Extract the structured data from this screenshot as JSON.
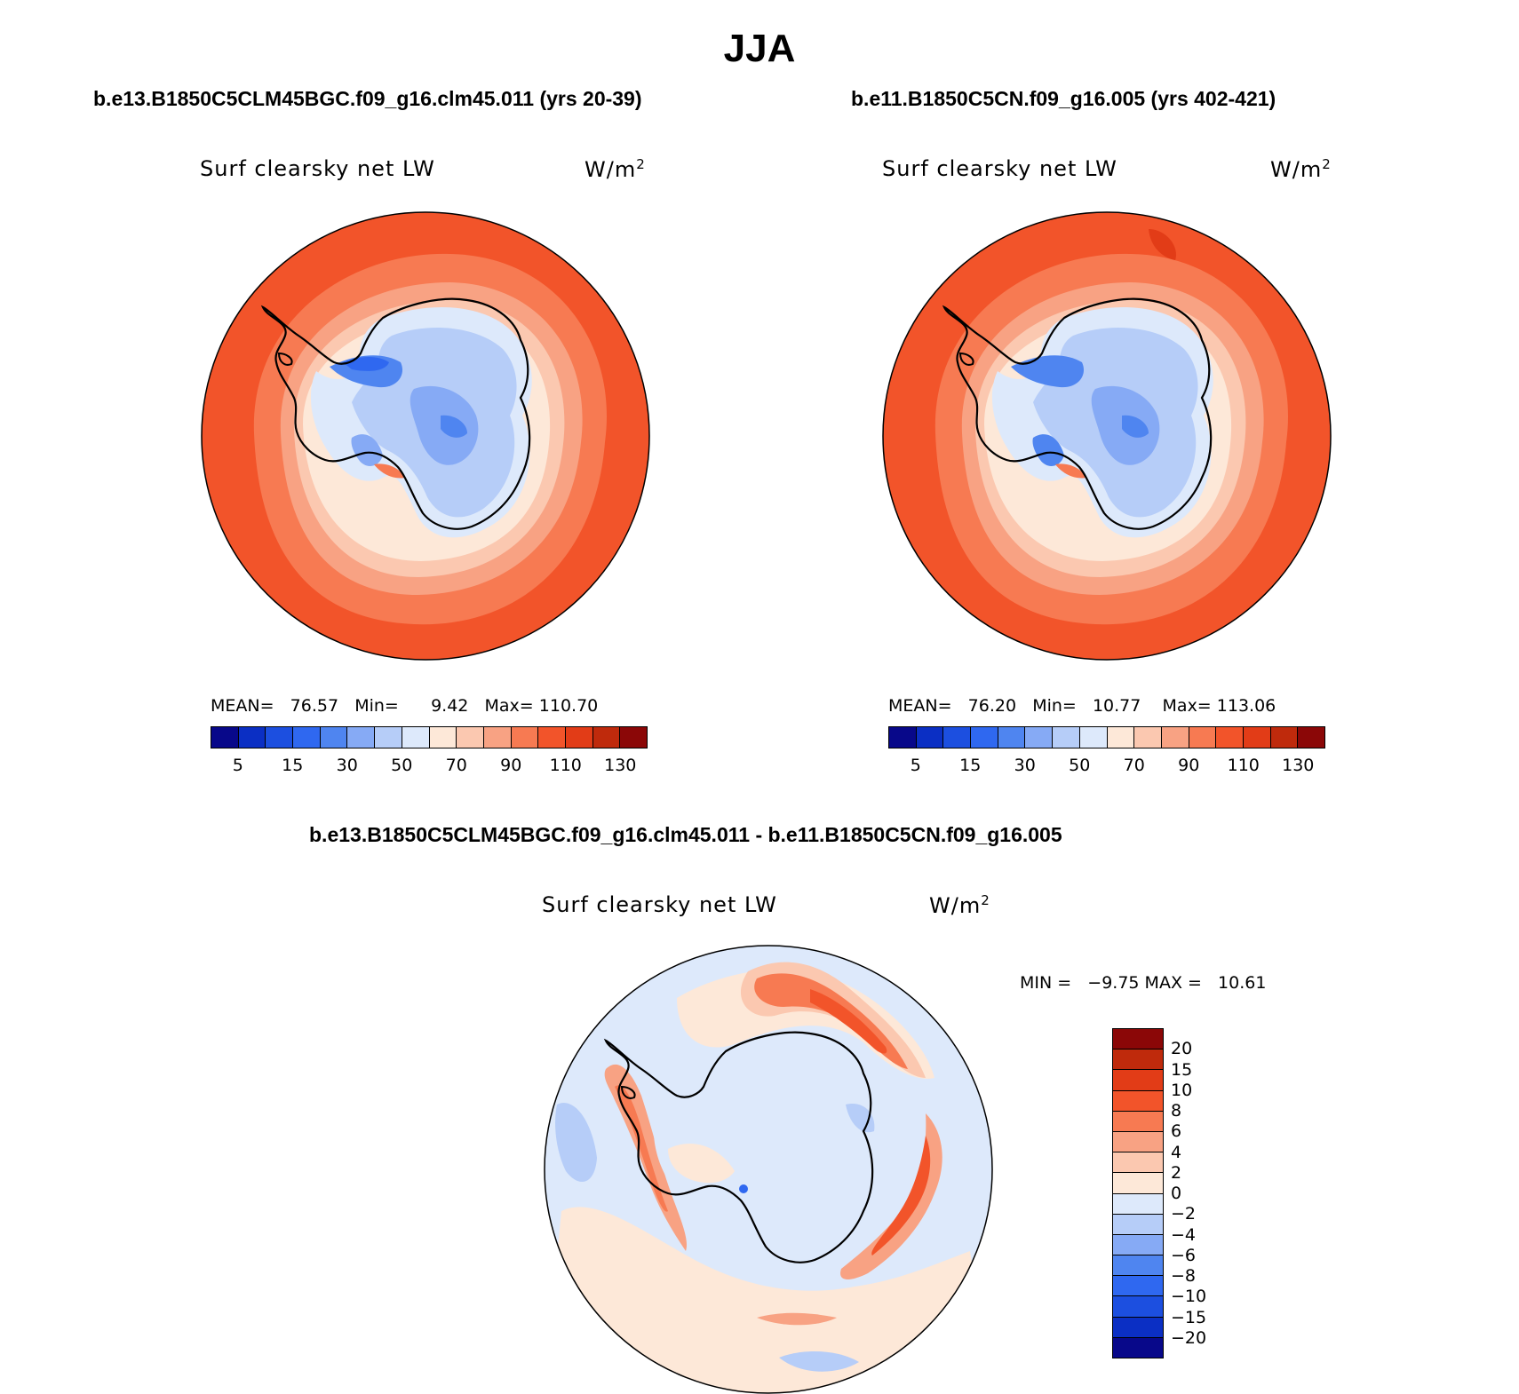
{
  "title": "JJA",
  "panels": [
    {
      "case_title": "b.e13.B1850C5CLM45BGC.f09_g16.clm45.011 (yrs 20-39)",
      "variable": "Surf clearsky net LW",
      "units": "W/m",
      "units_exp": "2",
      "stats": {
        "mean_label": "MEAN=",
        "mean": "76.57",
        "min_label": "Min=",
        "min": "9.42",
        "max_label": "Max=",
        "max": "110.70"
      }
    },
    {
      "case_title": "b.e11.B1850C5CN.f09_g16.005 (yrs 402-421)",
      "variable": "Surf clearsky net LW",
      "units": "W/m",
      "units_exp": "2",
      "stats": {
        "mean_label": "MEAN=",
        "mean": "76.20",
        "min_label": "Min=",
        "min": "10.77",
        "max_label": "Max=",
        "max": "113.06"
      }
    }
  ],
  "diff_panel": {
    "case_title": "b.e13.B1850C5CLM45BGC.f09_g16.clm45.011 - b.e11.B1850C5CN.f09_g16.005",
    "variable": "Surf clearsky net LW",
    "units": "W/m",
    "units_exp": "2",
    "minmax": "MIN =   −9.75 MAX =   10.61"
  },
  "abs_colorbar": {
    "colors": [
      "#08088a",
      "#0b2fc4",
      "#1c4fe0",
      "#2f68f0",
      "#4f85f0",
      "#86aaf5",
      "#b6cdf8",
      "#dde9fb",
      "#fde8d8",
      "#fbc8b0",
      "#f8a283",
      "#f77a52",
      "#f2542a",
      "#e23c17",
      "#bf2a0c",
      "#8b0707"
    ],
    "tick_labels": [
      "5",
      "15",
      "30",
      "50",
      "70",
      "90",
      "110",
      "130"
    ]
  },
  "diff_colorbar": {
    "colors_top_to_bottom": [
      "#8b0707",
      "#bf2a0c",
      "#e23c17",
      "#f2542a",
      "#f77a52",
      "#f8a283",
      "#fbc8b0",
      "#fde8d8",
      "#dde9fb",
      "#b6cdf8",
      "#86aaf5",
      "#4f85f0",
      "#2f68f0",
      "#1c4fe0",
      "#0b2fc4",
      "#08088a"
    ],
    "tick_labels": [
      "20",
      "15",
      "10",
      "8",
      "6",
      "4",
      "2",
      "0",
      "−2",
      "−4",
      "−6",
      "−8",
      "−10",
      "−15",
      "−20"
    ]
  },
  "chart_data": [
    {
      "type": "heatmap",
      "title": "b.e13.B1850C5CLM45BGC.f09_g16.clm45.011 (yrs 20-39)",
      "variable": "Surf clearsky net LW",
      "units": "W/m2",
      "season": "JJA",
      "projection": "south polar stereographic",
      "mean": 76.57,
      "min": 9.42,
      "max": 110.7,
      "levels": [
        5,
        10,
        15,
        20,
        30,
        40,
        50,
        60,
        70,
        80,
        90,
        100,
        110,
        120,
        130
      ]
    },
    {
      "type": "heatmap",
      "title": "b.e11.B1850C5CN.f09_g16.005 (yrs 402-421)",
      "variable": "Surf clearsky net LW",
      "units": "W/m2",
      "season": "JJA",
      "projection": "south polar stereographic",
      "mean": 76.2,
      "min": 10.77,
      "max": 113.06,
      "levels": [
        5,
        10,
        15,
        20,
        30,
        40,
        50,
        60,
        70,
        80,
        90,
        100,
        110,
        120,
        130
      ]
    },
    {
      "type": "heatmap",
      "title": "b.e13.B1850C5CLM45BGC.f09_g16.clm45.011 - b.e11.B1850C5CN.f09_g16.005",
      "variable": "Surf clearsky net LW",
      "units": "W/m2",
      "season": "JJA",
      "projection": "south polar stereographic",
      "min": -9.75,
      "max": 10.61,
      "levels": [
        -20,
        -15,
        -10,
        -8,
        -6,
        -4,
        -2,
        0,
        2,
        4,
        6,
        8,
        10,
        15,
        20
      ]
    }
  ]
}
